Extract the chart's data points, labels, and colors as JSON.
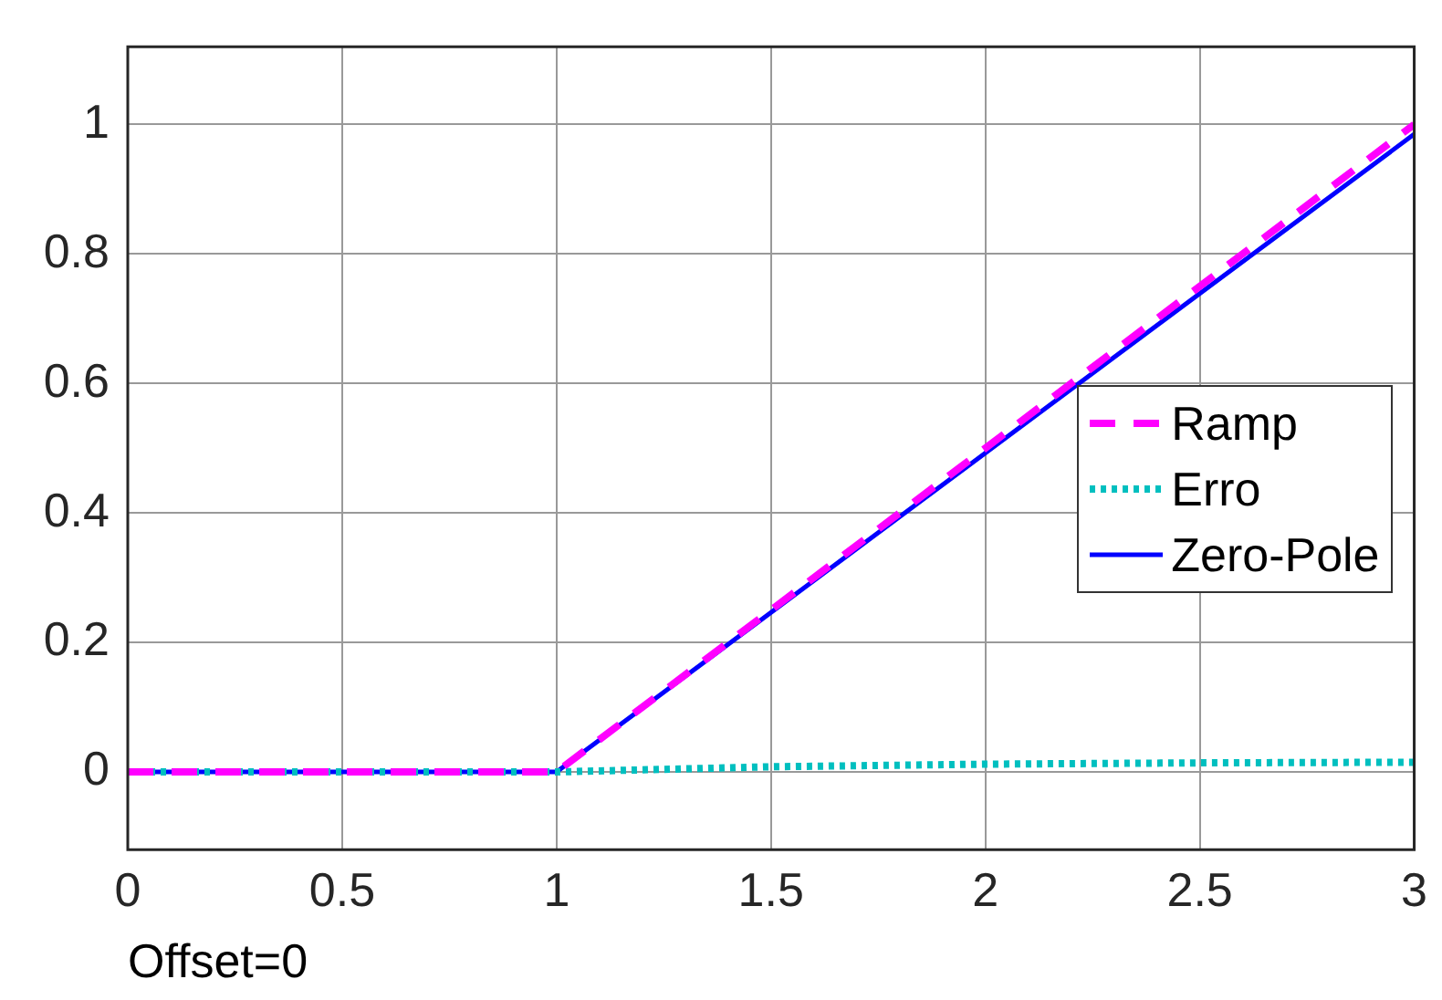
{
  "chart_data": {
    "type": "line",
    "xlabel": "Offset=0",
    "xlim": [
      0,
      3
    ],
    "xticks": [
      0,
      0.5,
      1,
      1.5,
      2,
      2.5,
      3
    ],
    "ylim": [
      -0.12,
      1.12
    ],
    "yticks": [
      0,
      0.2,
      0.4,
      0.6,
      0.8,
      1
    ],
    "grid": true,
    "legend": "right",
    "marker": "none",
    "series": [
      {
        "name": "Ramp",
        "color": "#ff00ff",
        "line_style": "dashed",
        "x": [
          0,
          1,
          3
        ],
        "values": [
          0,
          0,
          1
        ]
      },
      {
        "name": "Erro",
        "color": "#00bfbf",
        "line_style": "dotted",
        "x": [
          0,
          1,
          1.5,
          2,
          2.5,
          3
        ],
        "values": [
          0,
          0,
          0.008,
          0.012,
          0.014,
          0.015
        ]
      },
      {
        "name": "Zero-Pole",
        "color": "#0000ff",
        "line_style": "solid",
        "x": [
          0,
          1,
          3
        ],
        "values": [
          0,
          0,
          0.985
        ]
      }
    ]
  }
}
